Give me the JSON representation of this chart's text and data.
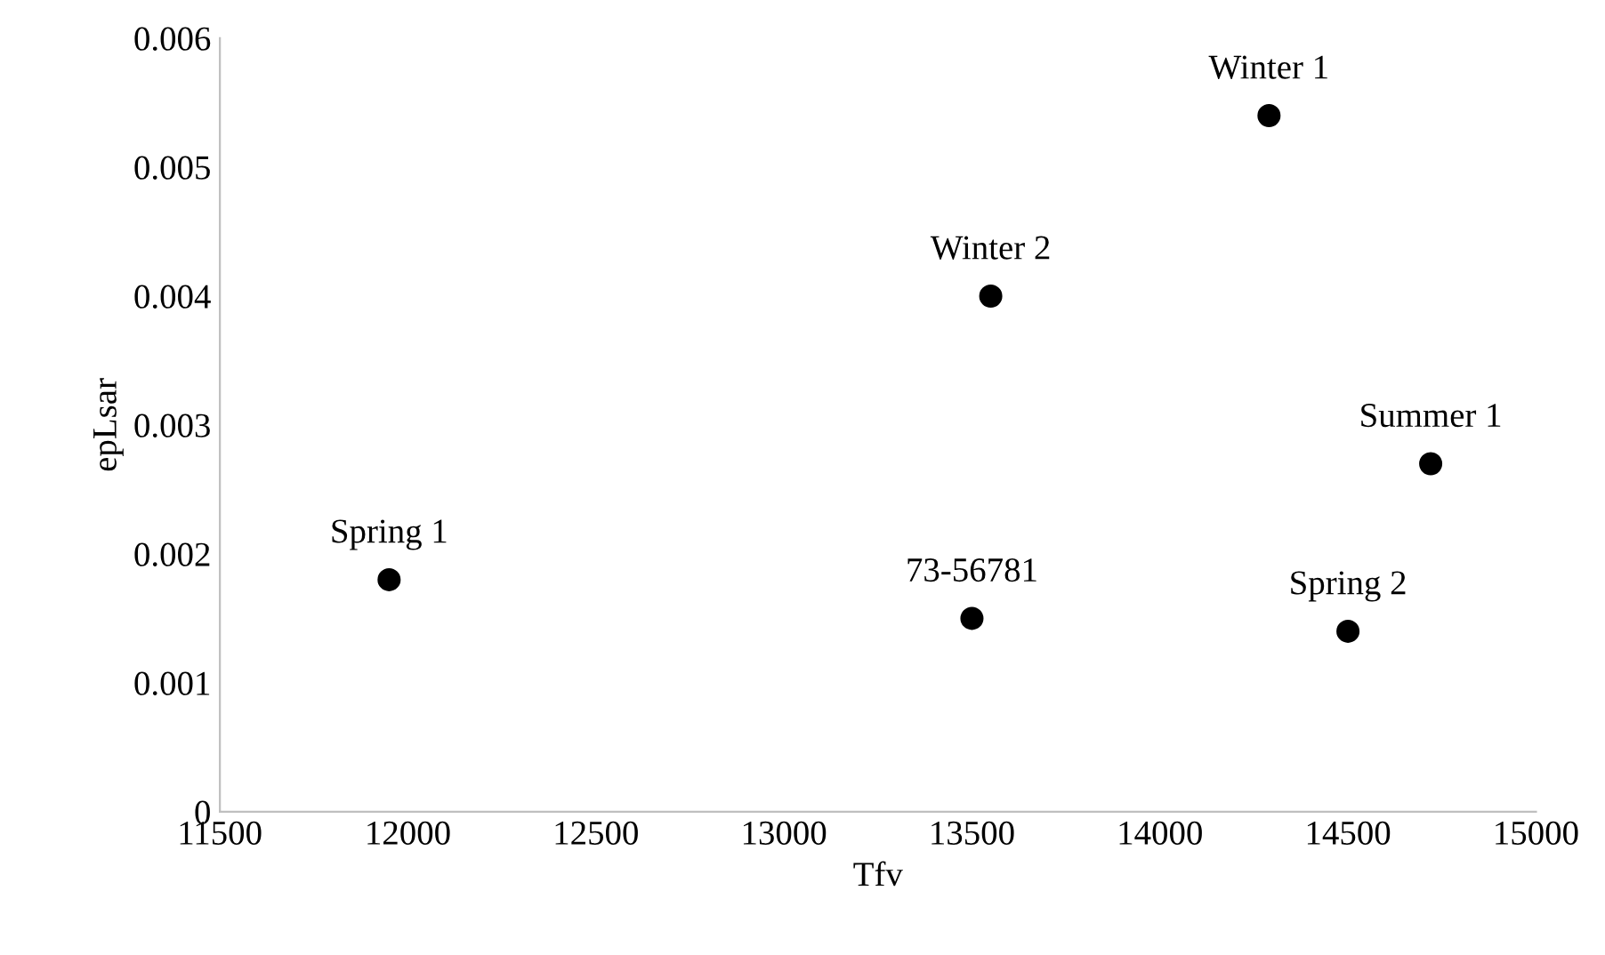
{
  "chart_data": {
    "type": "scatter",
    "xlabel": "Tfv",
    "ylabel": "epLsar",
    "x": [
      11950,
      13500,
      14500,
      13550,
      14290,
      14720
    ],
    "values": [
      0.0018,
      0.0015,
      0.0014,
      0.004,
      0.0054,
      0.0027
    ],
    "color": "#000000",
    "marker": "circle",
    "annotations": [
      {
        "text": "Spring 1",
        "x": 11950,
        "y": 0.0018
      },
      {
        "text": "73-56781",
        "x": 13500,
        "y": 0.0015
      },
      {
        "text": "Spring 2",
        "x": 14500,
        "y": 0.0014
      },
      {
        "text": "Winter 2",
        "x": 13550,
        "y": 0.004
      },
      {
        "text": "Winter 1",
        "x": 14290,
        "y": 0.0054
      },
      {
        "text": "Summer 1",
        "x": 14720,
        "y": 0.0027
      }
    ],
    "xlim": [
      11500,
      15000
    ],
    "xticks": [
      11500,
      12000,
      12500,
      13000,
      13500,
      14000,
      14500,
      15000
    ],
    "ylim": [
      0,
      0.006
    ],
    "yticks": [
      {
        "value": 0,
        "label": "0"
      },
      0.001,
      0.002,
      0.003,
      0.004,
      0.005,
      0.006
    ],
    "grid": false,
    "legend": false
  }
}
